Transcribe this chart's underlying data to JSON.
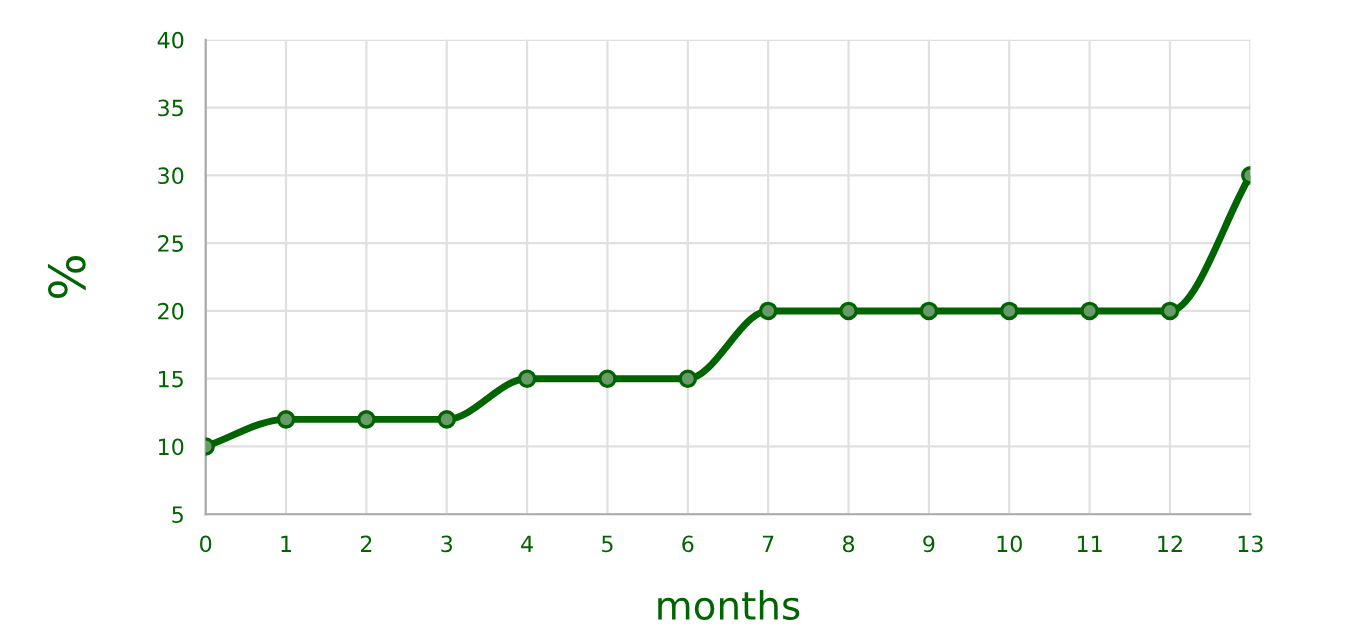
{
  "chart_data": {
    "type": "line",
    "xlabel": "months",
    "ylabel": "%",
    "x": [
      0,
      1,
      2,
      3,
      4,
      5,
      6,
      7,
      8,
      9,
      10,
      11,
      12,
      13
    ],
    "series": [
      {
        "color": "#006400",
        "values": [
          10,
          12,
          12,
          12,
          15,
          15,
          15,
          20,
          20,
          20,
          20,
          20,
          20,
          30
        ]
      }
    ],
    "xlim": [
      0,
      13
    ],
    "xticks": [
      0,
      1,
      2,
      3,
      4,
      5,
      6,
      7,
      8,
      9,
      10,
      11,
      12,
      13
    ],
    "ylim": [
      5,
      40
    ],
    "yticks": [
      5,
      10,
      15,
      20,
      25,
      30,
      35,
      40
    ],
    "grid": true,
    "marker": "circle",
    "line_style": "solid"
  }
}
